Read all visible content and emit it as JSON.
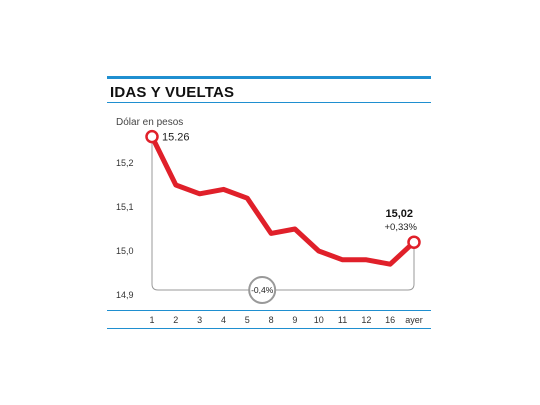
{
  "header": {
    "title": "IDAS Y VUELTAS"
  },
  "colors": {
    "accent_rule": "#1f8fd0",
    "series_line": "#e0202a",
    "bracket": "#999999"
  },
  "chart_data": {
    "type": "line",
    "title": "IDAS Y VUELTAS",
    "subtitle": "Dólar en pesos",
    "xlabel": "",
    "ylabel": "",
    "categories": [
      "1",
      "2",
      "3",
      "4",
      "5",
      "8",
      "9",
      "10",
      "11",
      "12",
      "16",
      "ayer"
    ],
    "series": [
      {
        "values": [
          15.26,
          15.15,
          15.13,
          15.14,
          15.12,
          15.04,
          15.05,
          15.0,
          14.98,
          14.98,
          14.97,
          15.02
        ]
      }
    ],
    "yticks": [
      "15,2",
      "15,1",
      "15,0",
      "14,9"
    ],
    "ylim": [
      14.9,
      15.3
    ],
    "grid": false,
    "annotations": {
      "start_label": "15.26",
      "end_value_label": "15,02",
      "end_change_label": "+0,33%",
      "period_change_label": "-0,4%"
    }
  }
}
